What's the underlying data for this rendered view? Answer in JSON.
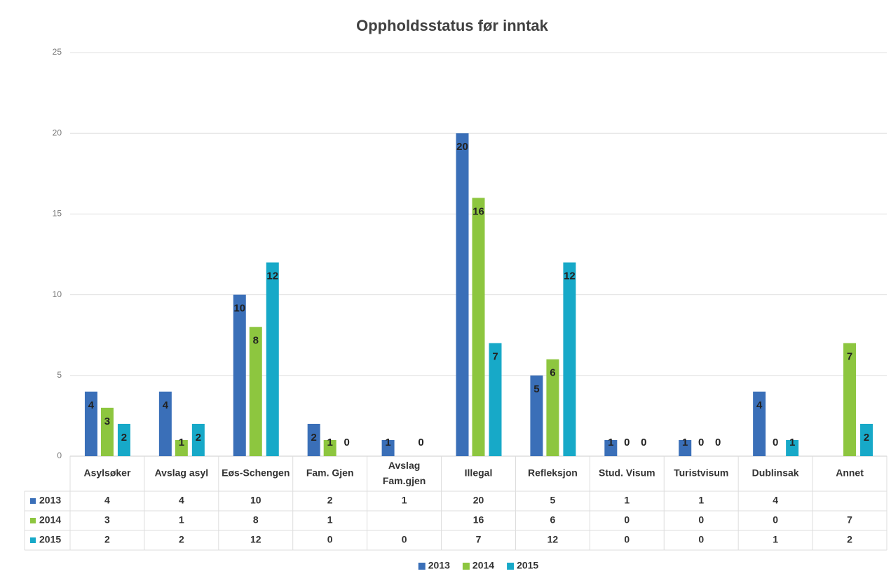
{
  "chart_data": {
    "type": "bar",
    "title": "Oppholdsstatus før inntak",
    "categories": [
      "Asylsøker",
      "Avslag asyl",
      "Eøs-Schengen",
      "Fam. Gjen",
      "Avslag Fam.gjen",
      "Illegal",
      "Refleksjon",
      "Stud. Visum",
      "Turistvisum",
      "Dublinsak",
      "Annet"
    ],
    "series": [
      {
        "name": "2013",
        "color": "#3a6fb8",
        "values": [
          4,
          4,
          10,
          2,
          1,
          20,
          5,
          1,
          1,
          4,
          null
        ]
      },
      {
        "name": "2014",
        "color": "#8dc63f",
        "values": [
          3,
          1,
          8,
          1,
          null,
          16,
          6,
          0,
          0,
          0,
          7
        ]
      },
      {
        "name": "2015",
        "color": "#17a9c8",
        "values": [
          2,
          2,
          12,
          0,
          0,
          7,
          12,
          0,
          0,
          1,
          2
        ]
      }
    ],
    "ylim": [
      0,
      25
    ],
    "yticks": [
      0,
      5,
      10,
      15,
      20,
      25
    ],
    "grid": true,
    "legend": "bottom",
    "data_table": true
  }
}
